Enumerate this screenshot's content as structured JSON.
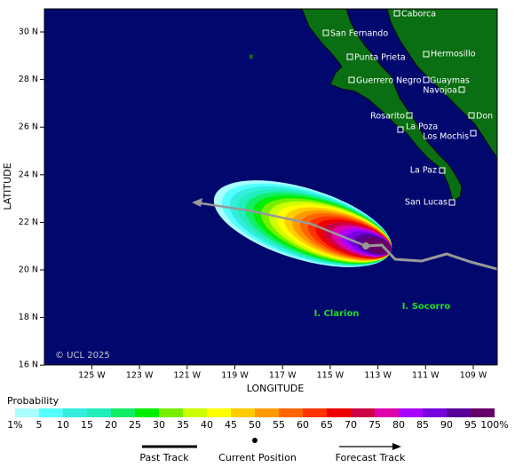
{
  "map": {
    "lat_ticks": [
      {
        "value": 30,
        "label": "30 N"
      },
      {
        "value": 28,
        "label": "28 N"
      },
      {
        "value": 26,
        "label": "26 N"
      },
      {
        "value": 24,
        "label": "24 N"
      },
      {
        "value": 22,
        "label": "22 N"
      },
      {
        "value": 20,
        "label": "20 N"
      },
      {
        "value": 18,
        "label": "18 N"
      },
      {
        "value": 16,
        "label": "16 N"
      }
    ],
    "lon_ticks": [
      {
        "value": -125,
        "label": "125 W"
      },
      {
        "value": -123,
        "label": "123 W"
      },
      {
        "value": -121,
        "label": "121 W"
      },
      {
        "value": -119,
        "label": "119 W"
      },
      {
        "value": -117,
        "label": "117 W"
      },
      {
        "value": -115,
        "label": "115 W"
      },
      {
        "value": -113,
        "label": "113 W"
      },
      {
        "value": -111,
        "label": "111 W"
      },
      {
        "value": -109,
        "label": "109 W"
      }
    ],
    "x_label": "LONGITUDE",
    "y_label": "LATITUDE",
    "places": [
      "Caborca",
      "San Fernando",
      "Punta Prieta",
      "Hermosillo",
      "Guerrero Negro",
      "Guaymas",
      "Navojoa",
      "Rosarito",
      "Don",
      "La Poza",
      "Los Mochis",
      "La Paz",
      "San Lucas"
    ],
    "islands": [
      "I. Clarion",
      "I. Socorro"
    ],
    "copyright": "© UCL 2025"
  },
  "legend": {
    "title": "Probability",
    "labels": [
      "1%",
      "5",
      "10",
      "15",
      "20",
      "25",
      "30",
      "35",
      "40",
      "45",
      "50",
      "55",
      "60",
      "65",
      "70",
      "75",
      "80",
      "85",
      "90",
      "95",
      "100%"
    ],
    "colors": [
      "#aaffff",
      "#55ffff",
      "#33eedd",
      "#22eebb",
      "#11ee66",
      "#00ee00",
      "#77ee00",
      "#ccff00",
      "#ffff00",
      "#ffcc00",
      "#ff9900",
      "#ff6600",
      "#ff3300",
      "#ee0000",
      "#cc0044",
      "#dd00aa",
      "#aa00ff",
      "#7700dd",
      "#550099",
      "#660066"
    ],
    "tracks": [
      "Past Track",
      "Current Position",
      "Forecast Track"
    ]
  }
}
